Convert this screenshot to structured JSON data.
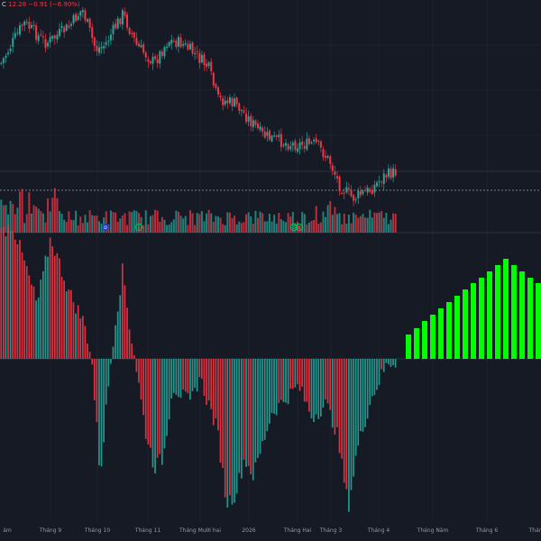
{
  "legend": {
    "close_label": "C",
    "close_value": "12.28",
    "change": "−0.91",
    "change_pct": "(−6.90%)"
  },
  "x_axis_labels": [
    "ám",
    "Tháng 9",
    "Tháng 10",
    "Tháng 11",
    "Tháng Mười hai",
    "2026",
    "Tháng Hai",
    "Tháng 3",
    "Tháng 4",
    "Tháng Năm",
    "Tháng 6",
    "Tháng"
  ],
  "markers": [
    {
      "letter": "D",
      "type": "dividend"
    },
    {
      "letter": "E",
      "type": "earnings"
    },
    {
      "letter": "E",
      "type": "earnings"
    },
    {
      "letter": "E",
      "type": "earnings"
    }
  ],
  "colors": {
    "background": "#161a25",
    "up": "#26a69a",
    "down": "#f23645",
    "oscillator_up": "#00ff00",
    "dividend": "#2b3cc9",
    "earnings": "#00c853",
    "axis_text": "#9598a1"
  },
  "chart_data": [
    {
      "type": "candlestick",
      "title": "",
      "price_trend_points": [
        [
          0,
          70
        ],
        [
          25,
          25
        ],
        [
          50,
          48
        ],
        [
          75,
          30
        ],
        [
          90,
          10
        ],
        [
          105,
          55
        ],
        [
          115,
          50
        ],
        [
          135,
          15
        ],
        [
          150,
          50
        ],
        [
          170,
          70
        ],
        [
          185,
          45
        ],
        [
          200,
          48
        ],
        [
          215,
          60
        ],
        [
          230,
          75
        ],
        [
          240,
          110
        ],
        [
          260,
          115
        ],
        [
          290,
          150
        ],
        [
          320,
          160
        ],
        [
          350,
          160
        ],
        [
          365,
          180
        ],
        [
          375,
          205
        ],
        [
          390,
          220
        ],
        [
          410,
          210
        ],
        [
          425,
          195
        ],
        [
          440,
          190
        ]
      ],
      "last_price_line_y_value": 211,
      "visible_candle_count": 170
    },
    {
      "type": "bar",
      "name": "volume",
      "bar_count": 170,
      "scale": "relative"
    },
    {
      "type": "histogram",
      "name": "oscillator",
      "past_segments": [
        [
          0,
          140
        ],
        [
          12,
          150
        ],
        [
          25,
          110
        ],
        [
          40,
          60
        ],
        [
          55,
          135
        ],
        [
          75,
          75
        ],
        [
          92,
          40
        ],
        [
          100,
          5
        ],
        [
          110,
          -130
        ],
        [
          118,
          -40
        ],
        [
          125,
          30
        ],
        [
          135,
          100
        ],
        [
          142,
          40
        ],
        [
          150,
          -10
        ],
        [
          160,
          -80
        ],
        [
          170,
          -120
        ],
        [
          180,
          -110
        ],
        [
          190,
          -30
        ],
        [
          200,
          -40
        ],
        [
          210,
          -50
        ],
        [
          220,
          -20
        ],
        [
          240,
          -80
        ],
        [
          250,
          -160
        ],
        [
          260,
          -150
        ],
        [
          270,
          -110
        ],
        [
          280,
          -130
        ],
        [
          290,
          -95
        ],
        [
          300,
          -60
        ],
        [
          320,
          -40
        ],
        [
          330,
          -30
        ],
        [
          345,
          -65
        ],
        [
          360,
          -50
        ],
        [
          372,
          -80
        ],
        [
          385,
          -165
        ],
        [
          395,
          -100
        ],
        [
          410,
          -45
        ],
        [
          425,
          -12
        ],
        [
          430,
          -4
        ]
      ],
      "projected_bars": [
        27,
        34,
        42,
        49,
        56,
        63,
        70,
        77,
        84,
        90,
        97,
        104,
        111,
        104,
        97,
        90,
        84
      ]
    }
  ]
}
